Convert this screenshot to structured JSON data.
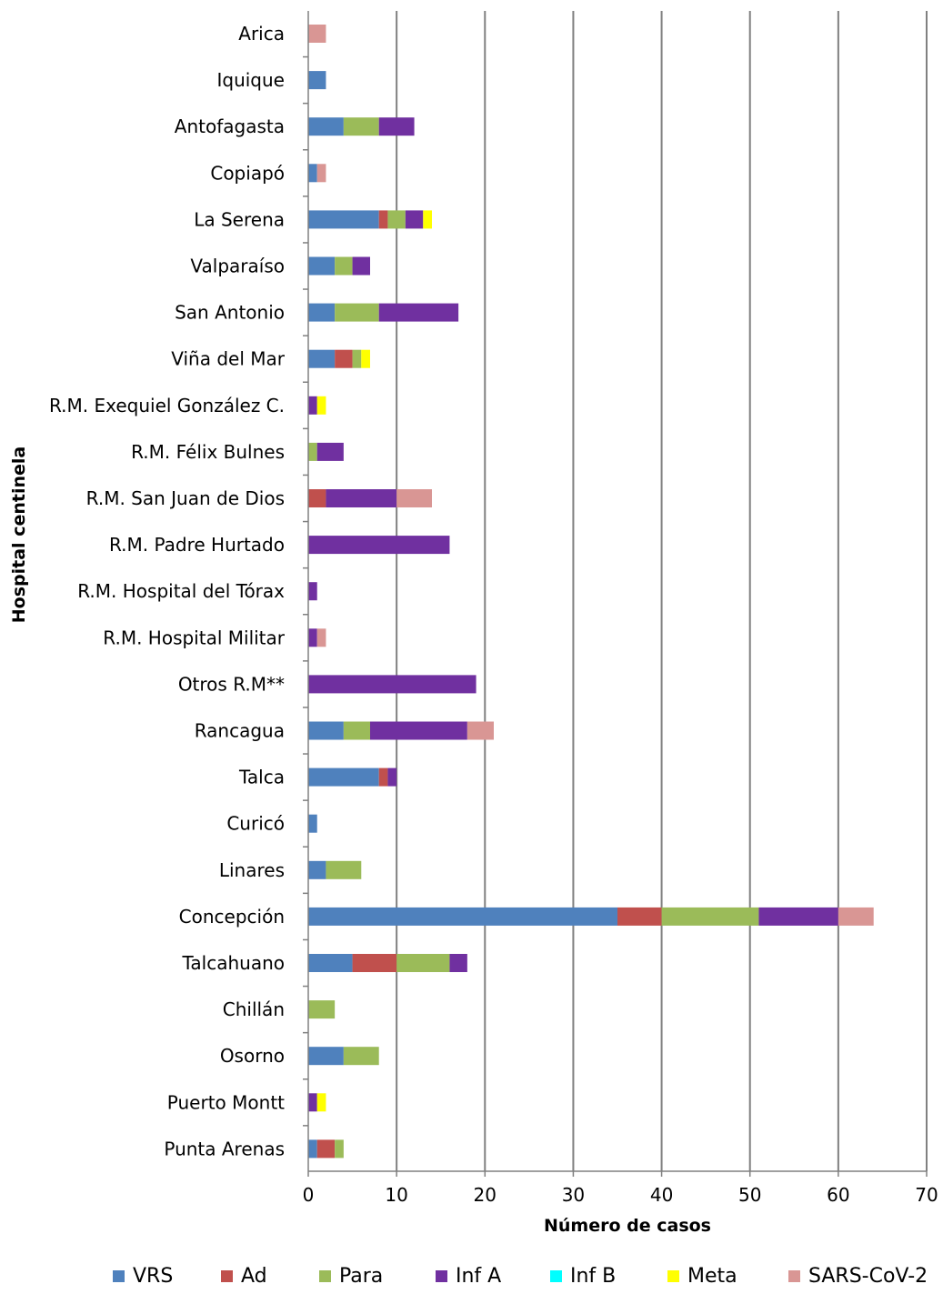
{
  "chart_data": {
    "type": "bar",
    "orientation": "horizontal",
    "stacked": true,
    "xlabel": "Número de casos",
    "ylabel": "Hospital centinela",
    "xlim": [
      0,
      70
    ],
    "xticks": [
      0,
      10,
      20,
      30,
      40,
      50,
      60,
      70
    ],
    "grid": "vertical",
    "legend_position": "bottom",
    "categories": [
      "Arica",
      "Iquique",
      "Antofagasta",
      "Copiapó",
      "La Serena",
      "Valparaíso",
      "San Antonio",
      "Viña del Mar",
      "R.M. Exequiel González C.",
      "R.M. Félix Bulnes",
      "R.M. San Juan de Dios",
      "R.M. Padre Hurtado",
      "R.M. Hospital del Tórax",
      "R.M. Hospital Militar",
      "Otros R.M**",
      "Rancagua",
      "Talca",
      "Curicó",
      "Linares",
      "Concepción",
      "Talcahuano",
      "Chillán",
      "Osorno",
      "Puerto Montt",
      "Punta Arenas"
    ],
    "series": [
      {
        "name": "VRS",
        "color": "#4f81bd",
        "values": [
          0,
          2,
          4,
          1,
          8,
          3,
          3,
          3,
          0,
          0,
          0,
          0,
          0,
          0,
          0,
          4,
          8,
          1,
          2,
          35,
          5,
          0,
          4,
          0,
          1
        ]
      },
      {
        "name": "Ad",
        "color": "#c0504d",
        "values": [
          0,
          0,
          0,
          0,
          1,
          0,
          0,
          2,
          0,
          0,
          2,
          0,
          0,
          0,
          0,
          0,
          1,
          0,
          0,
          5,
          5,
          0,
          0,
          0,
          2
        ]
      },
      {
        "name": "Para",
        "color": "#9bbb59",
        "values": [
          0,
          0,
          4,
          0,
          2,
          2,
          5,
          1,
          0,
          1,
          0,
          0,
          0,
          0,
          0,
          3,
          0,
          0,
          4,
          11,
          6,
          3,
          4,
          0,
          1
        ]
      },
      {
        "name": "Inf A",
        "color": "#7030a0",
        "values": [
          0,
          0,
          4,
          0,
          2,
          2,
          9,
          0,
          1,
          3,
          8,
          16,
          1,
          1,
          19,
          11,
          1,
          0,
          0,
          9,
          2,
          0,
          0,
          1,
          0
        ]
      },
      {
        "name": "Inf B",
        "color": "#00ffff",
        "values": [
          0,
          0,
          0,
          0,
          0,
          0,
          0,
          0,
          0,
          0,
          0,
          0,
          0,
          0,
          0,
          0,
          0,
          0,
          0,
          0,
          0,
          0,
          0,
          0,
          0
        ]
      },
      {
        "name": "Meta",
        "color": "#ffff00",
        "values": [
          0,
          0,
          0,
          0,
          1,
          0,
          0,
          1,
          1,
          0,
          0,
          0,
          0,
          0,
          0,
          0,
          0,
          0,
          0,
          0,
          0,
          0,
          0,
          1,
          0
        ]
      },
      {
        "name": "SARS-CoV-2",
        "color": "#d99694",
        "values": [
          2,
          0,
          0,
          1,
          0,
          0,
          0,
          0,
          0,
          0,
          4,
          0,
          0,
          1,
          0,
          3,
          0,
          0,
          0,
          4,
          0,
          0,
          0,
          0,
          0
        ]
      }
    ]
  }
}
